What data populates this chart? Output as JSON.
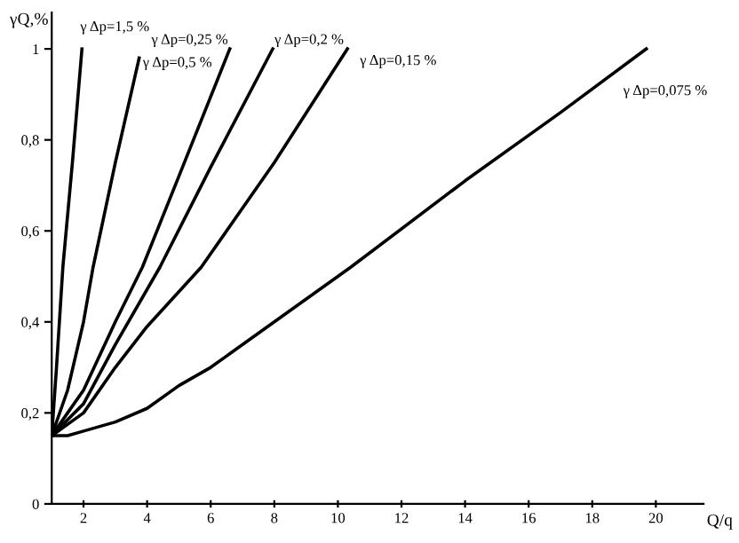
{
  "chart_data": {
    "type": "line",
    "ylabel": "γQ,%",
    "xlabel": "Q/q",
    "xlim": [
      1,
      21.5
    ],
    "ylim": [
      0,
      1.08
    ],
    "xticks": [
      2,
      4,
      6,
      8,
      10,
      12,
      14,
      16,
      18,
      20
    ],
    "yticks": [
      0,
      {
        "value": 0.2,
        "label": "0,2"
      },
      {
        "value": 0.4,
        "label": "0,4"
      },
      {
        "value": 0.6,
        "label": "0,6"
      },
      {
        "value": 0.8,
        "label": "0,8"
      },
      1
    ],
    "grid": false,
    "legend": false,
    "marker": "none",
    "line_style": "solid",
    "series": [
      {
        "name": "γ Δp=1,5 %",
        "color": "#000000",
        "x": [
          1,
          1.15,
          1.35,
          1.65,
          1.95
        ],
        "values": [
          0.15,
          0.3,
          0.52,
          0.75,
          1.0
        ]
      },
      {
        "name": "γ Δp=0,5 %",
        "color": "#000000",
        "x": [
          1,
          1.5,
          2.0,
          2.3,
          3.0,
          3.75
        ],
        "values": [
          0.15,
          0.25,
          0.4,
          0.52,
          0.75,
          0.98
        ]
      },
      {
        "name": "γ Δp=0,25 %",
        "color": "#000000",
        "x": [
          1,
          1.5,
          2,
          3,
          3.85,
          5,
          6.6
        ],
        "values": [
          0.15,
          0.2,
          0.25,
          0.4,
          0.52,
          0.72,
          1.0
        ]
      },
      {
        "name": "γ Δp=0,2 %",
        "color": "#000000",
        "x": [
          1,
          2,
          3,
          4.4,
          6,
          7.95
        ],
        "values": [
          0.15,
          0.22,
          0.35,
          0.52,
          0.74,
          1.0
        ]
      },
      {
        "name": "γ Δp=0,15 %",
        "color": "#000000",
        "x": [
          1,
          2,
          3,
          4,
          5.7,
          8,
          10.3
        ],
        "values": [
          0.15,
          0.2,
          0.3,
          0.39,
          0.52,
          0.75,
          1.0
        ]
      },
      {
        "name": "γ Δp=0,075 %",
        "color": "#000000",
        "x": [
          1,
          1.5,
          2,
          3,
          4,
          5,
          6,
          8,
          10.4,
          14,
          17,
          19.7
        ],
        "values": [
          0.15,
          0.15,
          0.16,
          0.18,
          0.21,
          0.26,
          0.3,
          0.4,
          0.52,
          0.71,
          0.86,
          1.0
        ]
      }
    ]
  }
}
